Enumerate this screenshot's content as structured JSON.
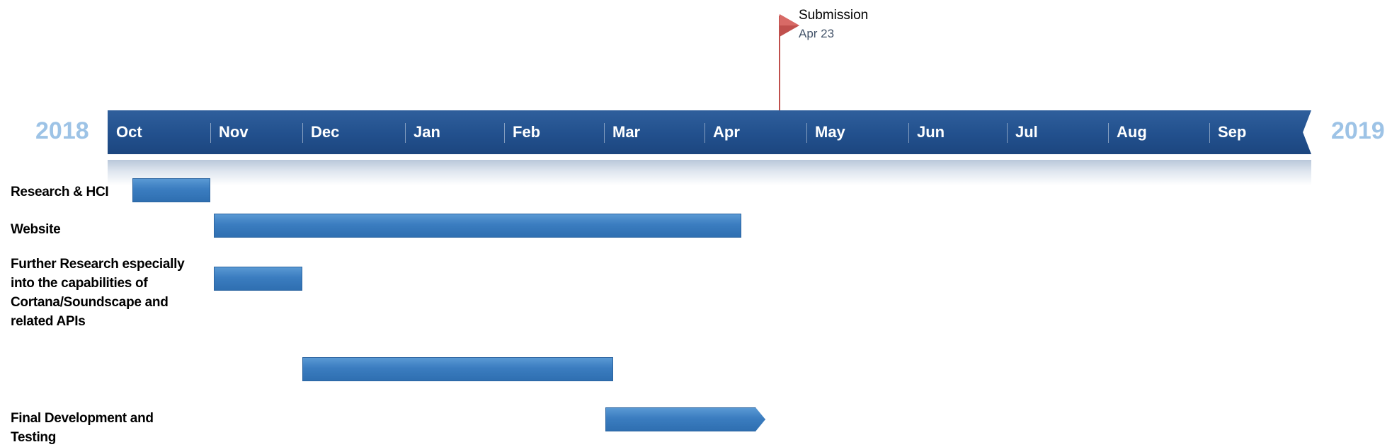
{
  "timeline": {
    "start_year": "2018",
    "end_year": "2019",
    "months": [
      "Oct",
      "Nov",
      "Dec",
      "Jan",
      "Feb",
      "Mar",
      "Apr",
      "May",
      "Jun",
      "Jul",
      "Aug",
      "Sep"
    ]
  },
  "milestone": {
    "title": "Submission",
    "date": "Apr 23",
    "flag_color": "#c0504d"
  },
  "tasks": [
    {
      "label": "Research  & HCI",
      "start": "Oct",
      "end": "Nov"
    },
    {
      "label": "Website",
      "start": "Nov",
      "end": "Apr"
    },
    {
      "label": "Further Research especially into the capabilities of Cortana/Soundscape and related APIs",
      "start": "Nov",
      "end": "Dec"
    },
    {
      "label": "",
      "start": "Dec",
      "end": "Mar"
    },
    {
      "label": "Final Development and Testing",
      "start": "Mar",
      "end": "Apr 23"
    }
  ],
  "colors": {
    "band": "#22508d",
    "year": "#9dc3e6",
    "bar": "#3b7dc0"
  }
}
